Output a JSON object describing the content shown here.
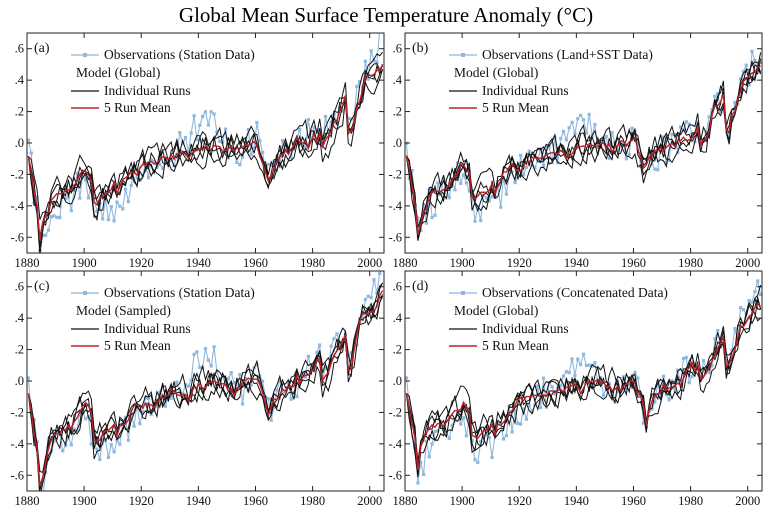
{
  "title": "Global Mean Surface Temperature Anomaly (°C)",
  "colors": {
    "observations": "#8fb8de",
    "individual_runs": "#111111",
    "mean": "#c0202a",
    "axis": "#222222"
  },
  "chart_data": [
    {
      "type": "line",
      "panel": "(a)",
      "xlim": [
        1880,
        2005
      ],
      "ylim": [
        -0.7,
        0.7
      ],
      "xticks": [
        1880,
        1900,
        1920,
        1940,
        1960,
        1980,
        2000
      ],
      "yticks": [
        0.6,
        0.4,
        0.2,
        0.0,
        -0.2,
        -0.4,
        -0.6
      ],
      "ytick_labels": [
        ".6",
        ".4",
        ".2",
        ".0",
        "-.2",
        "-.4",
        "-.6"
      ],
      "legend": {
        "observations": "Observations (Station Data)",
        "model_heading": "Model (Global)",
        "individual": "Individual Runs",
        "mean": "5 Run Mean"
      },
      "anchors": [
        [
          1880,
          -0.05
        ],
        [
          1884,
          -0.5
        ],
        [
          1888,
          -0.34
        ],
        [
          1895,
          -0.28
        ],
        [
          1900,
          -0.15
        ],
        [
          1902,
          -0.2
        ],
        [
          1904,
          -0.34
        ],
        [
          1909,
          -0.32
        ],
        [
          1912,
          -0.27
        ],
        [
          1916,
          -0.22
        ],
        [
          1922,
          -0.14
        ],
        [
          1930,
          -0.08
        ],
        [
          1940,
          -0.03
        ],
        [
          1945,
          -0.01
        ],
        [
          1950,
          -0.02
        ],
        [
          1955,
          -0.02
        ],
        [
          1960,
          0.0
        ],
        [
          1963,
          -0.18
        ],
        [
          1967,
          -0.08
        ],
        [
          1975,
          -0.02
        ],
        [
          1982,
          0.08
        ],
        [
          1985,
          0.05
        ],
        [
          1991,
          0.28
        ],
        [
          1993,
          0.14
        ],
        [
          1997,
          0.36
        ],
        [
          2000,
          0.42
        ],
        [
          2004,
          0.52
        ]
      ],
      "volcanic_dips": [
        [
          1883.3,
          0.17
        ],
        [
          1902.5,
          0.13
        ],
        [
          1963.3,
          0.13
        ],
        [
          1982.3,
          0.14
        ],
        [
          1991.5,
          0.2
        ]
      ],
      "obs_offsets": [
        [
          1880,
          0.05
        ],
        [
          1885,
          -0.12
        ],
        [
          1890,
          -0.08
        ],
        [
          1895,
          -0.05
        ],
        [
          1905,
          -0.12
        ],
        [
          1910,
          -0.13
        ],
        [
          1915,
          -0.06
        ],
        [
          1925,
          -0.01
        ],
        [
          1935,
          0.06
        ],
        [
          1940,
          0.15
        ],
        [
          1944,
          0.19
        ],
        [
          1948,
          0.05
        ],
        [
          1955,
          -0.05
        ],
        [
          1960,
          0.08
        ],
        [
          1965,
          -0.04
        ],
        [
          1970,
          0.0
        ],
        [
          1980,
          0.06
        ],
        [
          1990,
          0.04
        ],
        [
          1995,
          0.03
        ],
        [
          2000,
          0.12
        ],
        [
          2004,
          0.16
        ]
      ]
    },
    {
      "type": "line",
      "panel": "(b)",
      "xlim": [
        1880,
        2005
      ],
      "ylim": [
        -0.7,
        0.7
      ],
      "xticks": [
        1880,
        1900,
        1920,
        1940,
        1960,
        1980,
        2000
      ],
      "yticks": [
        0.6,
        0.4,
        0.2,
        0.0,
        -0.2,
        -0.4,
        -0.6
      ],
      "ytick_labels": [
        ".6",
        ".4",
        ".2",
        ".0",
        "-.2",
        "-.4",
        "-.6"
      ],
      "legend": {
        "observations": "Observations (Land+SST Data)",
        "model_heading": "Model (Global)",
        "individual": "Individual Runs",
        "mean": "5 Run Mean"
      },
      "anchors": [
        [
          1880,
          -0.05
        ],
        [
          1884,
          -0.48
        ],
        [
          1888,
          -0.33
        ],
        [
          1895,
          -0.26
        ],
        [
          1900,
          -0.15
        ],
        [
          1902,
          -0.2
        ],
        [
          1904,
          -0.33
        ],
        [
          1909,
          -0.3
        ],
        [
          1912,
          -0.26
        ],
        [
          1916,
          -0.2
        ],
        [
          1922,
          -0.13
        ],
        [
          1930,
          -0.07
        ],
        [
          1940,
          -0.02
        ],
        [
          1945,
          0.0
        ],
        [
          1950,
          -0.02
        ],
        [
          1955,
          -0.02
        ],
        [
          1960,
          0.01
        ],
        [
          1963,
          -0.16
        ],
        [
          1967,
          -0.06
        ],
        [
          1975,
          0.0
        ],
        [
          1982,
          0.1
        ],
        [
          1985,
          0.08
        ],
        [
          1991,
          0.3
        ],
        [
          1993,
          0.16
        ],
        [
          1997,
          0.38
        ],
        [
          2000,
          0.42
        ],
        [
          2004,
          0.5
        ]
      ],
      "volcanic_dips": [
        [
          1883.3,
          0.17
        ],
        [
          1902.5,
          0.13
        ],
        [
          1963.3,
          0.13
        ],
        [
          1982.3,
          0.14
        ],
        [
          1991.5,
          0.2
        ]
      ],
      "obs_offsets": [
        [
          1880,
          0.03
        ],
        [
          1885,
          -0.05
        ],
        [
          1890,
          -0.06
        ],
        [
          1895,
          0.0
        ],
        [
          1905,
          -0.1
        ],
        [
          1910,
          -0.12
        ],
        [
          1915,
          -0.03
        ],
        [
          1925,
          -0.02
        ],
        [
          1935,
          0.02
        ],
        [
          1940,
          0.1
        ],
        [
          1944,
          0.12
        ],
        [
          1948,
          0.02
        ],
        [
          1955,
          -0.04
        ],
        [
          1960,
          0.03
        ],
        [
          1965,
          -0.05
        ],
        [
          1970,
          -0.02
        ],
        [
          1980,
          0.02
        ],
        [
          1990,
          0.01
        ],
        [
          1995,
          -0.02
        ],
        [
          2000,
          0.04
        ],
        [
          2004,
          0.06
        ]
      ]
    },
    {
      "type": "line",
      "panel": "(c)",
      "xlim": [
        1880,
        2005
      ],
      "ylim": [
        -0.7,
        0.7
      ],
      "xticks": [
        1880,
        1900,
        1920,
        1940,
        1960,
        1980,
        2000
      ],
      "yticks": [
        0.6,
        0.4,
        0.2,
        0.0,
        -0.2,
        -0.4,
        -0.6
      ],
      "ytick_labels": [
        ".6",
        ".4",
        ".2",
        ".0",
        "-.2",
        "-.4",
        "-.6"
      ],
      "legend": {
        "observations": "Observations (Station Data)",
        "model_heading": "Model (Sampled)",
        "individual": "Individual Runs",
        "mean": "5 Run Mean"
      },
      "anchors": [
        [
          1880,
          -0.05
        ],
        [
          1884,
          -0.55
        ],
        [
          1888,
          -0.36
        ],
        [
          1895,
          -0.28
        ],
        [
          1900,
          -0.15
        ],
        [
          1902,
          -0.21
        ],
        [
          1904,
          -0.35
        ],
        [
          1909,
          -0.33
        ],
        [
          1912,
          -0.28
        ],
        [
          1916,
          -0.22
        ],
        [
          1922,
          -0.14
        ],
        [
          1930,
          -0.08
        ],
        [
          1940,
          -0.02
        ],
        [
          1945,
          0.0
        ],
        [
          1950,
          -0.02
        ],
        [
          1955,
          -0.02
        ],
        [
          1960,
          0.01
        ],
        [
          1963,
          -0.18
        ],
        [
          1967,
          -0.08
        ],
        [
          1975,
          -0.02
        ],
        [
          1982,
          0.09
        ],
        [
          1985,
          0.06
        ],
        [
          1991,
          0.3
        ],
        [
          1993,
          0.15
        ],
        [
          1997,
          0.38
        ],
        [
          2000,
          0.44
        ],
        [
          2004,
          0.55
        ]
      ],
      "volcanic_dips": [
        [
          1883.3,
          0.2
        ],
        [
          1902.5,
          0.14
        ],
        [
          1963.3,
          0.14
        ],
        [
          1982.3,
          0.15
        ],
        [
          1991.5,
          0.22
        ]
      ],
      "obs_offsets": [
        [
          1880,
          0.05
        ],
        [
          1885,
          -0.12
        ],
        [
          1890,
          -0.08
        ],
        [
          1895,
          -0.05
        ],
        [
          1905,
          -0.12
        ],
        [
          1910,
          -0.13
        ],
        [
          1915,
          -0.06
        ],
        [
          1925,
          -0.01
        ],
        [
          1935,
          0.06
        ],
        [
          1940,
          0.15
        ],
        [
          1944,
          0.19
        ],
        [
          1948,
          0.05
        ],
        [
          1955,
          -0.05
        ],
        [
          1960,
          0.08
        ],
        [
          1965,
          -0.04
        ],
        [
          1970,
          0.0
        ],
        [
          1980,
          0.06
        ],
        [
          1990,
          0.04
        ],
        [
          1995,
          0.03
        ],
        [
          2000,
          0.12
        ],
        [
          2004,
          0.16
        ]
      ]
    },
    {
      "type": "line",
      "panel": "(d)",
      "xlim": [
        1880,
        2005
      ],
      "ylim": [
        -0.7,
        0.7
      ],
      "xticks": [
        1880,
        1900,
        1920,
        1940,
        1960,
        1980,
        2000
      ],
      "yticks": [
        0.6,
        0.4,
        0.2,
        0.0,
        -0.2,
        -0.4,
        -0.6
      ],
      "ytick_labels": [
        ".6",
        ".4",
        ".2",
        ".0",
        "-.2",
        "-.4",
        "-.6"
      ],
      "legend": {
        "observations": "Observations (Concatenated Data)",
        "model_heading": "Model (Global)",
        "individual": "Individual Runs",
        "mean": "5 Run Mean"
      },
      "anchors": [
        [
          1880,
          -0.05
        ],
        [
          1884,
          -0.48
        ],
        [
          1888,
          -0.33
        ],
        [
          1895,
          -0.26
        ],
        [
          1900,
          -0.15
        ],
        [
          1902,
          -0.2
        ],
        [
          1904,
          -0.33
        ],
        [
          1909,
          -0.3
        ],
        [
          1912,
          -0.26
        ],
        [
          1916,
          -0.2
        ],
        [
          1922,
          -0.13
        ],
        [
          1930,
          -0.07
        ],
        [
          1940,
          -0.02
        ],
        [
          1945,
          0.0
        ],
        [
          1950,
          -0.02
        ],
        [
          1955,
          -0.02
        ],
        [
          1960,
          0.01
        ],
        [
          1963,
          -0.16
        ],
        [
          1967,
          -0.06
        ],
        [
          1975,
          0.0
        ],
        [
          1982,
          0.1
        ],
        [
          1985,
          0.08
        ],
        [
          1991,
          0.3
        ],
        [
          1993,
          0.16
        ],
        [
          1997,
          0.38
        ],
        [
          2000,
          0.42
        ],
        [
          2004,
          0.5
        ]
      ],
      "volcanic_dips": [
        [
          1883.3,
          0.17
        ],
        [
          1902.5,
          0.13
        ],
        [
          1963.3,
          0.13
        ],
        [
          1982.3,
          0.14
        ],
        [
          1991.5,
          0.2
        ]
      ],
      "obs_offsets": [
        [
          1880,
          0.05
        ],
        [
          1885,
          -0.1
        ],
        [
          1890,
          -0.08
        ],
        [
          1895,
          -0.04
        ],
        [
          1905,
          -0.11
        ],
        [
          1910,
          -0.12
        ],
        [
          1915,
          -0.05
        ],
        [
          1925,
          -0.01
        ],
        [
          1935,
          0.04
        ],
        [
          1940,
          0.12
        ],
        [
          1944,
          0.15
        ],
        [
          1948,
          0.03
        ],
        [
          1955,
          -0.04
        ],
        [
          1960,
          0.05
        ],
        [
          1965,
          -0.05
        ],
        [
          1970,
          -0.01
        ],
        [
          1980,
          0.03
        ],
        [
          1990,
          0.02
        ],
        [
          1995,
          0.0
        ],
        [
          2000,
          0.06
        ],
        [
          2004,
          0.08
        ]
      ]
    }
  ]
}
